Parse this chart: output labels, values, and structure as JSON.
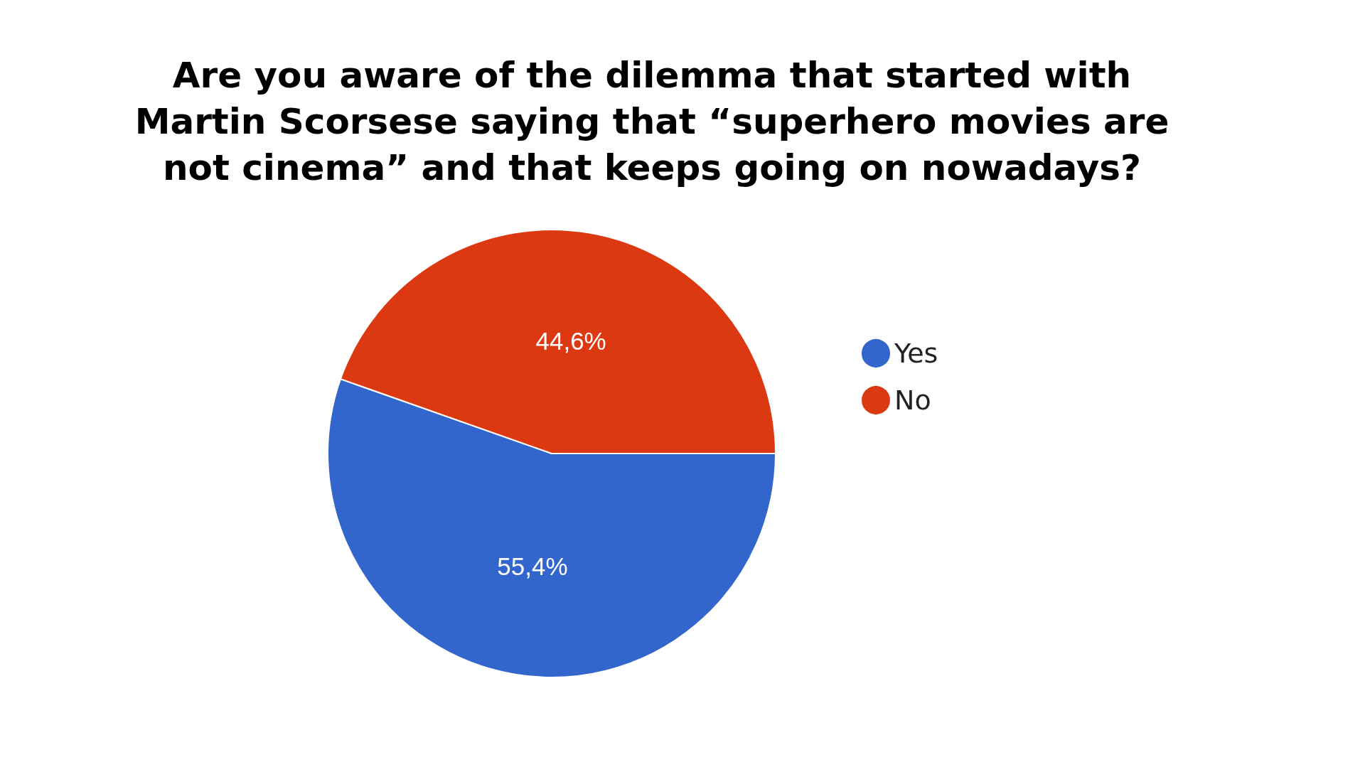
{
  "chart_data": {
    "type": "pie",
    "title": "Are you aware of the dilemma that started with\nMartin Scorsese saying that “superhero movies are\nnot cinema” and that keeps going on nowadays?",
    "categories": [
      "Yes",
      "No"
    ],
    "values": [
      55.4,
      44.6
    ],
    "colors": [
      "#3366cc",
      "#dc3912"
    ],
    "value_labels": [
      "55,4%",
      "44,6%"
    ],
    "legend": "right"
  }
}
